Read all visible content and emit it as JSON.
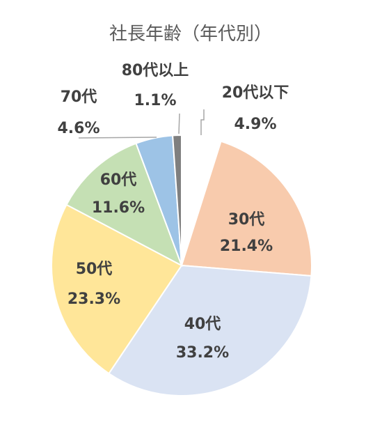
{
  "chart_data": {
    "type": "pie",
    "title": "社長年齢（年代別）",
    "start_angle_deg": 0,
    "direction": "clockwise",
    "slices": [
      {
        "name": "20代以下",
        "value": 4.9,
        "label": "4.9%",
        "color": "#ffffff"
      },
      {
        "name": "30代",
        "value": 21.4,
        "label": "21.4%",
        "color": "#f8cbad"
      },
      {
        "name": "40代",
        "value": 33.2,
        "label": "33.2%",
        "color": "#dae3f3"
      },
      {
        "name": "50代",
        "value": 23.3,
        "label": "23.3%",
        "color": "#ffe699"
      },
      {
        "name": "60代",
        "value": 11.6,
        "label": "11.6%",
        "color": "#c5e0b4"
      },
      {
        "name": "70代",
        "value": 4.6,
        "label": "4.6%",
        "color": "#9dc3e6"
      },
      {
        "name": "80代以上",
        "value": 1.1,
        "label": "1.1%",
        "color": "#7f7f7f"
      }
    ],
    "slice_border_color": "#ffffff",
    "label_color": "#404040",
    "leader_line_color": "#a6a6a6",
    "legend": "none"
  }
}
